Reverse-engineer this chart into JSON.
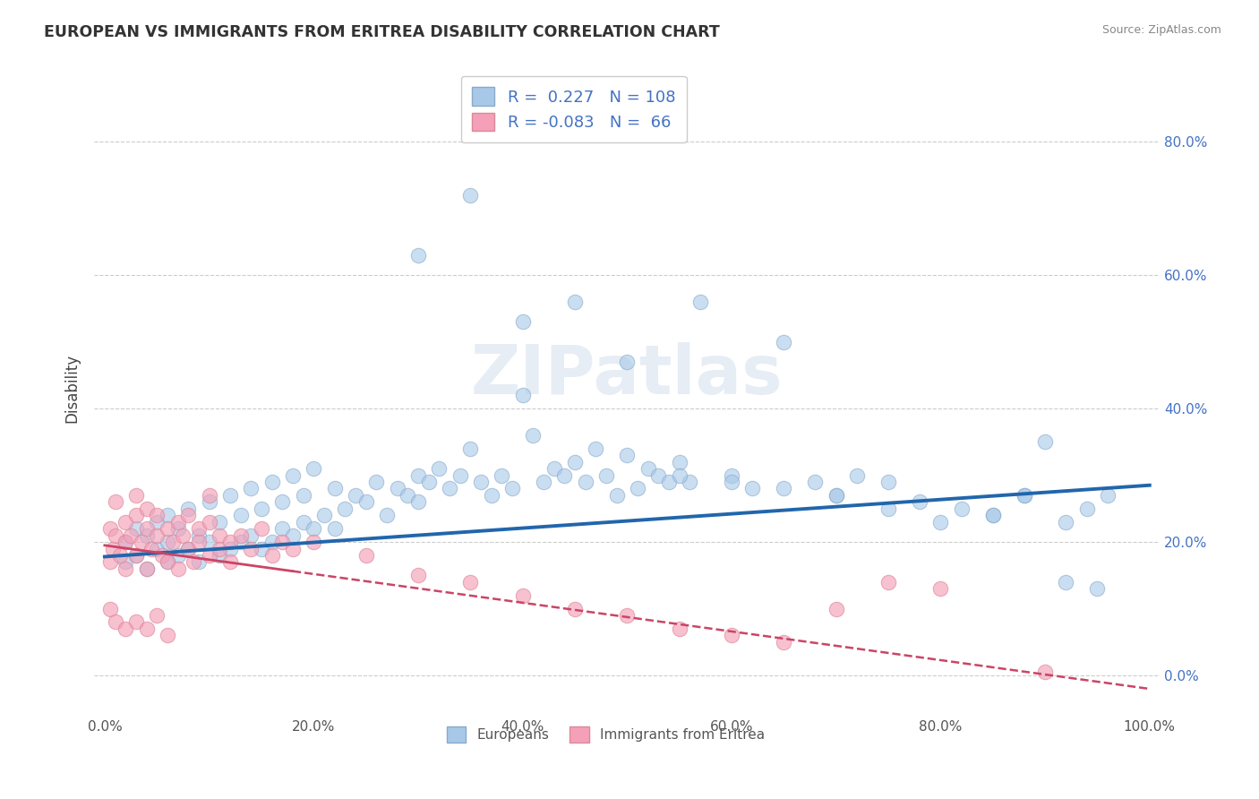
{
  "title": "EUROPEAN VS IMMIGRANTS FROM ERITREA DISABILITY CORRELATION CHART",
  "source": "Source: ZipAtlas.com",
  "ylabel": "Disability",
  "xlim": [
    -0.01,
    1.01
  ],
  "ylim": [
    -0.06,
    0.92
  ],
  "yticks": [
    0.0,
    0.2,
    0.4,
    0.6,
    0.8
  ],
  "ytick_labels": [
    "0.0%",
    "20.0%",
    "40.0%",
    "60.0%",
    "80.0%"
  ],
  "xticks": [
    0.0,
    0.2,
    0.4,
    0.6,
    0.8,
    1.0
  ],
  "xtick_labels": [
    "0.0%",
    "20.0%",
    "40.0%",
    "60.0%",
    "80.0%",
    "100.0%"
  ],
  "blue_R": 0.227,
  "blue_N": 108,
  "pink_R": -0.083,
  "pink_N": 66,
  "blue_color": "#a8c8e8",
  "pink_color": "#f4a0b8",
  "grid_color": "#cccccc",
  "background_color": "#ffffff",
  "watermark": "ZIPatlas",
  "blue_trend_start": 0.178,
  "blue_trend_end": 0.285,
  "pink_trend_x0": 0.0,
  "pink_trend_y0": 0.195,
  "pink_trend_x1": 1.0,
  "pink_trend_y1": -0.02,
  "blue_scatter_x": [
    0.02,
    0.02,
    0.03,
    0.03,
    0.04,
    0.04,
    0.05,
    0.05,
    0.06,
    0.06,
    0.06,
    0.07,
    0.07,
    0.08,
    0.08,
    0.09,
    0.09,
    0.1,
    0.1,
    0.11,
    0.11,
    0.12,
    0.12,
    0.13,
    0.13,
    0.14,
    0.14,
    0.15,
    0.15,
    0.16,
    0.16,
    0.17,
    0.17,
    0.18,
    0.18,
    0.19,
    0.19,
    0.2,
    0.2,
    0.21,
    0.22,
    0.22,
    0.23,
    0.24,
    0.25,
    0.26,
    0.27,
    0.28,
    0.29,
    0.3,
    0.3,
    0.31,
    0.32,
    0.33,
    0.34,
    0.35,
    0.36,
    0.37,
    0.38,
    0.39,
    0.4,
    0.41,
    0.42,
    0.43,
    0.44,
    0.45,
    0.46,
    0.47,
    0.48,
    0.49,
    0.5,
    0.51,
    0.52,
    0.53,
    0.54,
    0.55,
    0.56,
    0.57,
    0.6,
    0.62,
    0.65,
    0.68,
    0.7,
    0.72,
    0.75,
    0.78,
    0.8,
    0.82,
    0.85,
    0.88,
    0.9,
    0.92,
    0.94,
    0.96,
    0.3,
    0.35,
    0.4,
    0.45,
    0.5,
    0.55,
    0.6,
    0.65,
    0.7,
    0.75,
    0.85,
    0.88,
    0.92,
    0.95
  ],
  "blue_scatter_y": [
    0.17,
    0.2,
    0.18,
    0.22,
    0.16,
    0.21,
    0.19,
    0.23,
    0.17,
    0.2,
    0.24,
    0.18,
    0.22,
    0.19,
    0.25,
    0.17,
    0.21,
    0.2,
    0.26,
    0.18,
    0.23,
    0.19,
    0.27,
    0.2,
    0.24,
    0.21,
    0.28,
    0.19,
    0.25,
    0.2,
    0.29,
    0.22,
    0.26,
    0.21,
    0.3,
    0.23,
    0.27,
    0.22,
    0.31,
    0.24,
    0.22,
    0.28,
    0.25,
    0.27,
    0.26,
    0.29,
    0.24,
    0.28,
    0.27,
    0.3,
    0.26,
    0.29,
    0.31,
    0.28,
    0.3,
    0.34,
    0.29,
    0.27,
    0.3,
    0.28,
    0.42,
    0.36,
    0.29,
    0.31,
    0.3,
    0.32,
    0.29,
    0.34,
    0.3,
    0.27,
    0.33,
    0.28,
    0.31,
    0.3,
    0.29,
    0.32,
    0.29,
    0.56,
    0.3,
    0.28,
    0.5,
    0.29,
    0.27,
    0.3,
    0.29,
    0.26,
    0.23,
    0.25,
    0.24,
    0.27,
    0.35,
    0.23,
    0.25,
    0.27,
    0.63,
    0.72,
    0.53,
    0.56,
    0.47,
    0.3,
    0.29,
    0.28,
    0.27,
    0.25,
    0.24,
    0.27,
    0.14,
    0.13
  ],
  "pink_scatter_x": [
    0.005,
    0.005,
    0.008,
    0.01,
    0.01,
    0.015,
    0.02,
    0.02,
    0.02,
    0.025,
    0.03,
    0.03,
    0.03,
    0.035,
    0.04,
    0.04,
    0.04,
    0.045,
    0.05,
    0.05,
    0.055,
    0.06,
    0.06,
    0.065,
    0.07,
    0.07,
    0.075,
    0.08,
    0.08,
    0.085,
    0.09,
    0.09,
    0.1,
    0.1,
    0.1,
    0.11,
    0.11,
    0.12,
    0.12,
    0.13,
    0.14,
    0.15,
    0.16,
    0.17,
    0.18,
    0.2,
    0.25,
    0.3,
    0.35,
    0.4,
    0.45,
    0.5,
    0.55,
    0.6,
    0.65,
    0.7,
    0.75,
    0.8,
    0.9,
    0.005,
    0.01,
    0.02,
    0.03,
    0.04,
    0.05,
    0.06
  ],
  "pink_scatter_y": [
    0.17,
    0.22,
    0.19,
    0.21,
    0.26,
    0.18,
    0.2,
    0.23,
    0.16,
    0.21,
    0.24,
    0.18,
    0.27,
    0.2,
    0.16,
    0.22,
    0.25,
    0.19,
    0.21,
    0.24,
    0.18,
    0.22,
    0.17,
    0.2,
    0.23,
    0.16,
    0.21,
    0.19,
    0.24,
    0.17,
    0.22,
    0.2,
    0.18,
    0.23,
    0.27,
    0.21,
    0.19,
    0.2,
    0.17,
    0.21,
    0.19,
    0.22,
    0.18,
    0.2,
    0.19,
    0.2,
    0.18,
    0.15,
    0.14,
    0.12,
    0.1,
    0.09,
    0.07,
    0.06,
    0.05,
    0.1,
    0.14,
    0.13,
    0.005,
    0.1,
    0.08,
    0.07,
    0.08,
    0.07,
    0.09,
    0.06
  ]
}
